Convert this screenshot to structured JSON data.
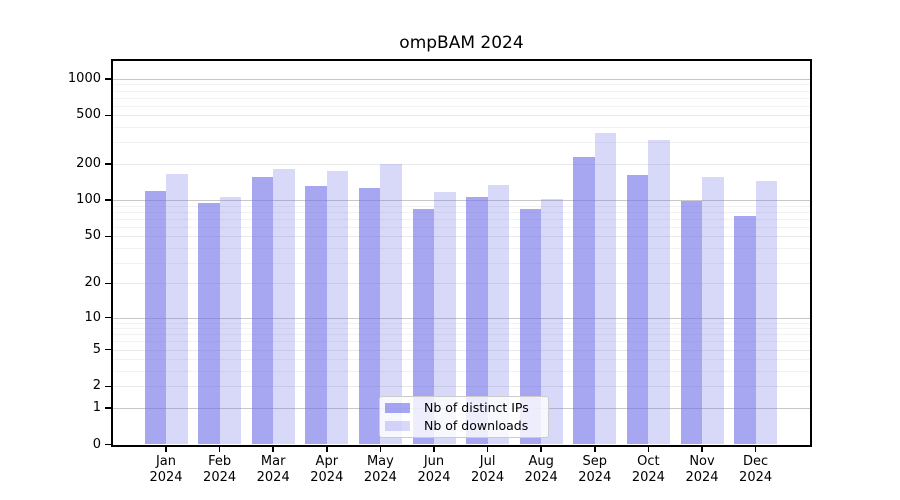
{
  "chart_data": {
    "type": "bar",
    "title": "ompBAM 2024",
    "categories": [
      "Jan 2024",
      "Feb 2024",
      "Mar 2024",
      "Apr 2024",
      "May 2024",
      "Jun 2024",
      "Jul 2024",
      "Aug 2024",
      "Sep 2024",
      "Oct 2024",
      "Nov 2024",
      "Dec 2024"
    ],
    "series": [
      {
        "name": "Nb of distinct IPs",
        "values": [
          120,
          95,
          156,
          132,
          125,
          85,
          107,
          85,
          229,
          160,
          98,
          74
        ]
      },
      {
        "name": "Nb of downloads",
        "values": [
          165,
          107,
          180,
          175,
          200,
          116,
          133,
          102,
          355,
          312,
          154,
          143
        ]
      }
    ],
    "yticks": [
      0,
      1,
      2,
      5,
      10,
      20,
      50,
      100,
      200,
      500,
      1000
    ],
    "scale": "log1p",
    "ymax": 1411,
    "xlabel": "",
    "ylabel": "",
    "grid": true,
    "legend_position": "lower center"
  },
  "colors": {
    "bar_base": "#7070e8",
    "ips_alpha": "0.62",
    "downloads_alpha": "0.27",
    "grid_power10": "#c8c8c8",
    "grid_labeled": "#e9e9e9",
    "grid_minor": "#f2f2f2",
    "axis_color": "#000000",
    "legend_border": "#cccccc"
  }
}
